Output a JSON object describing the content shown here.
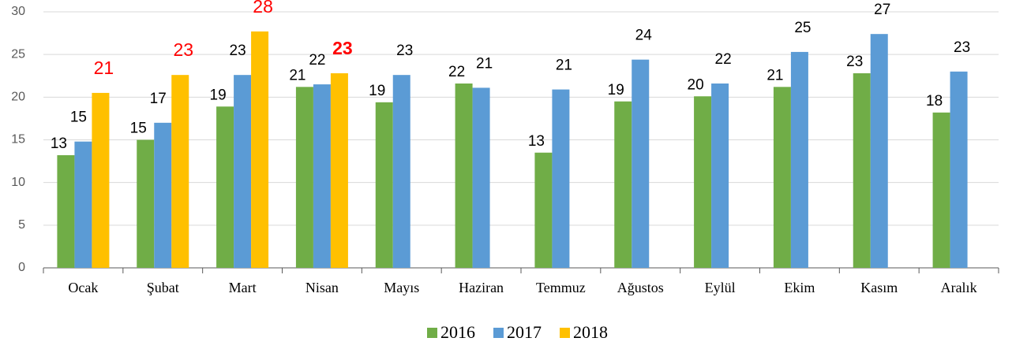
{
  "chart_data": {
    "type": "bar",
    "categories": [
      "Ocak",
      "Şubat",
      "Mart",
      "Nisan",
      "Mayıs",
      "Haziran",
      "Temmuz",
      "Ağustos",
      "Eylül",
      "Ekim",
      "Kasım",
      "Aralık"
    ],
    "series": [
      {
        "name": "2016",
        "color": "#70ad47",
        "label_color": "#000000",
        "values": [
          13.2,
          15.0,
          18.9,
          21.2,
          19.4,
          21.6,
          13.5,
          19.5,
          20.1,
          21.2,
          22.8,
          18.2
        ],
        "value_labels": [
          "13",
          "15",
          "19",
          "21",
          "19",
          "22",
          "13",
          "19",
          "20",
          "21",
          "23",
          "18"
        ]
      },
      {
        "name": "2017",
        "color": "#5b9bd5",
        "label_color": "#000000",
        "values": [
          14.8,
          17.0,
          22.6,
          21.5,
          22.6,
          21.1,
          20.9,
          24.4,
          21.6,
          25.3,
          27.4,
          23.0
        ],
        "value_labels": [
          "15",
          "17",
          "23",
          "22",
          "23",
          "21",
          "21",
          "24",
          "22",
          "25",
          "27",
          "23"
        ]
      },
      {
        "name": "2018",
        "color": "#ffc000",
        "label_color": "#ff0000",
        "bold_label_index": 3,
        "values": [
          20.5,
          22.6,
          27.7,
          22.8,
          null,
          null,
          null,
          null,
          null,
          null,
          null,
          null
        ],
        "value_labels": [
          "21",
          "23",
          "28",
          "23",
          null,
          null,
          null,
          null,
          null,
          null,
          null,
          null
        ]
      }
    ],
    "ylim": [
      0,
      30
    ],
    "yticks": [
      0,
      5,
      10,
      15,
      20,
      25,
      30
    ],
    "grid": true,
    "legend": "bottom"
  }
}
